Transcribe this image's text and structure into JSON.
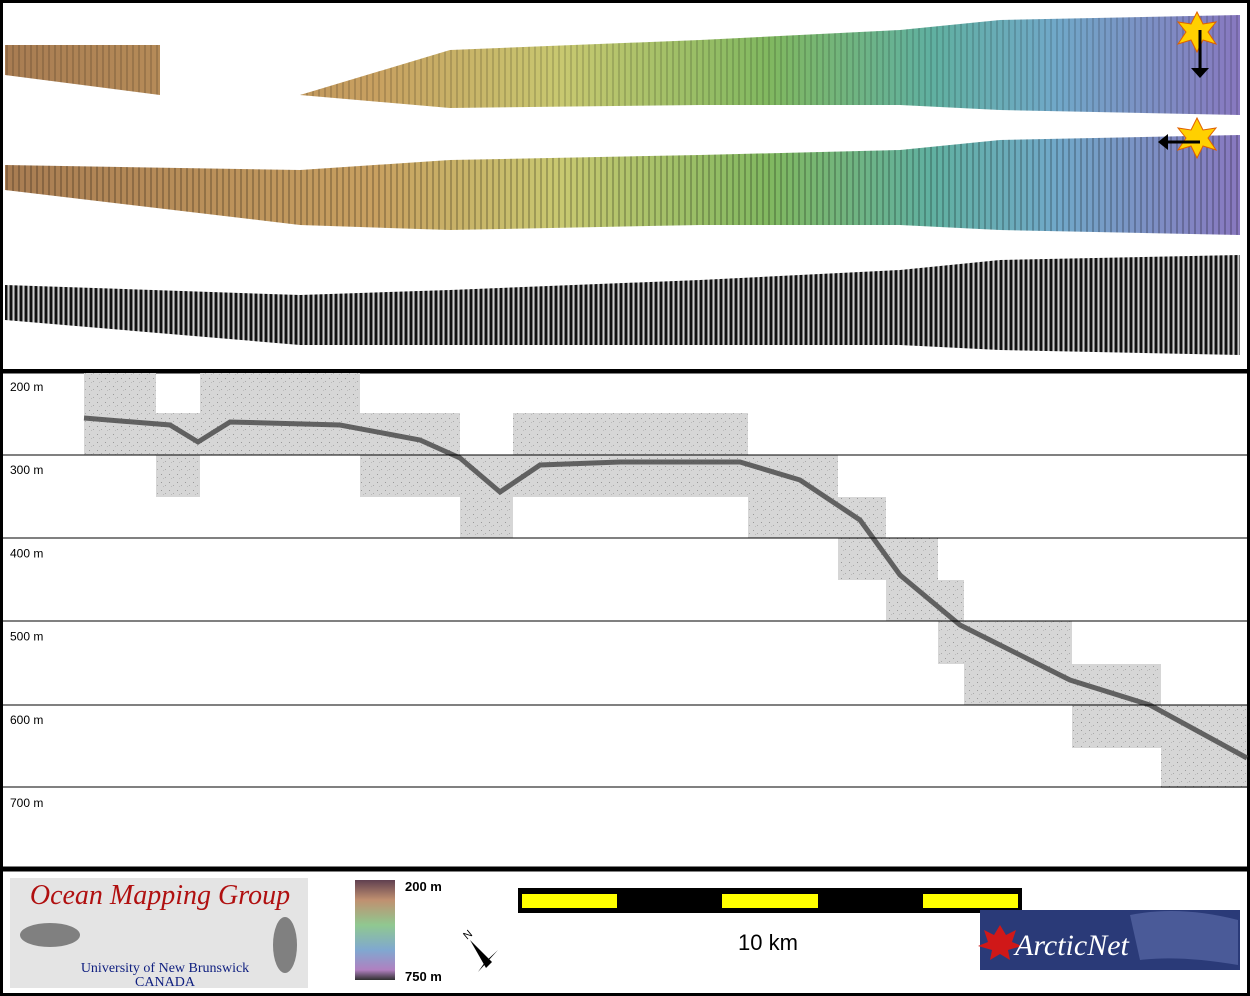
{
  "profile": {
    "depth_labels": [
      "200 m",
      "300 m",
      "400 m",
      "500 m",
      "600 m",
      "700 m"
    ]
  },
  "footer": {
    "logo": {
      "title": "Ocean Mapping Group",
      "university": "University of New Brunswick",
      "country": "CANADA"
    },
    "colorbar": {
      "top_label": "200 m",
      "bottom_label": "750 m"
    },
    "north": "N",
    "scale_bar": {
      "label": "10 km"
    },
    "partner_logo": "ArcticNet"
  }
}
